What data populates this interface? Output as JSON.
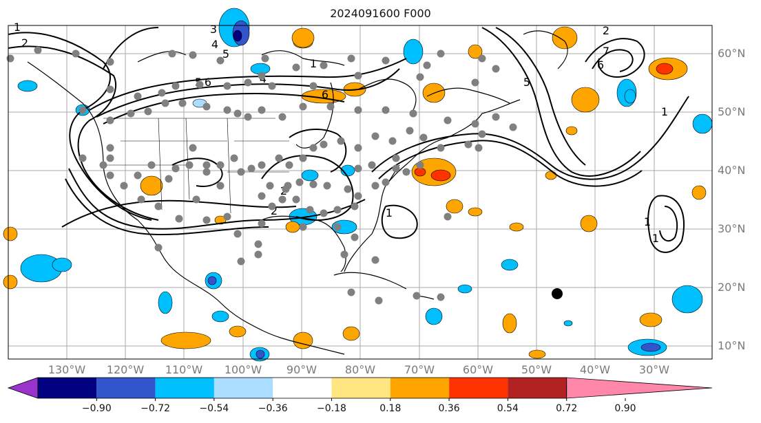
{
  "title": "2024091600 F000",
  "longitude_labels": [
    "130°W",
    "120°W",
    "110°W",
    "100°W",
    "90°W",
    "80°W",
    "70°W",
    "60°W",
    "50°W",
    "40°W",
    "30°W"
  ],
  "latitude_labels": [
    "60°N",
    "50°N",
    "40°N",
    "30°N",
    "20°N",
    "10°N"
  ],
  "colorbar": {
    "ticks": [
      "−0.90",
      "−0.72",
      "−0.54",
      "−0.36",
      "−0.18",
      "0.18",
      "0.36",
      "0.54",
      "0.72",
      "0.90"
    ],
    "colors": [
      "#9933cc",
      "#000080",
      "#3355cc",
      "#00bfff",
      "#aaddff",
      "#ffffff",
      "#ffe680",
      "#ffa500",
      "#ff3300",
      "#b22222",
      "#ff88aa"
    ]
  },
  "contour_labels": [
    "1",
    "2",
    "3",
    "4",
    "5",
    "6",
    "1",
    "2",
    "4",
    "5",
    "6",
    "1",
    "2",
    "1",
    "1",
    "2",
    "5",
    "6",
    "7",
    "1"
  ],
  "colors": {
    "grid": "#aaaaaa",
    "station": "#808080",
    "contour": "#000000"
  }
}
